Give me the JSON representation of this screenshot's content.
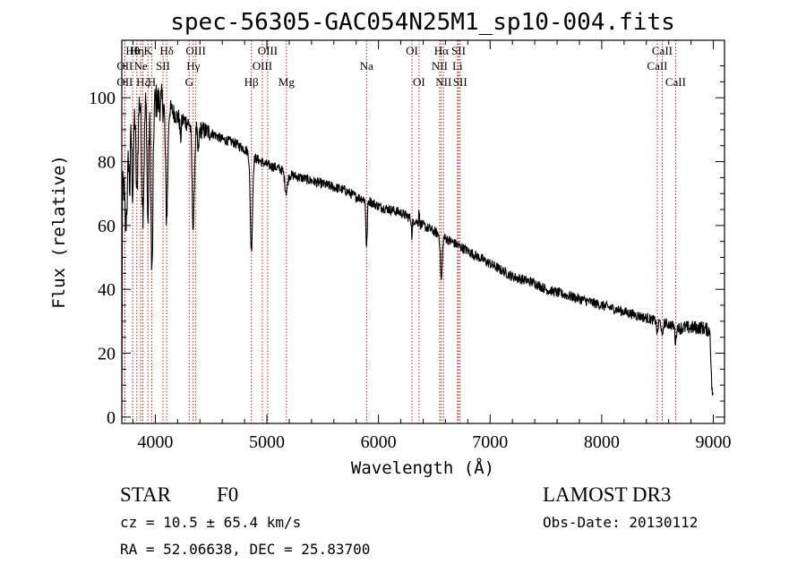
{
  "chart_data": {
    "type": "line",
    "title": "spec-56305-GAC054N25M1_sp10-004.fits",
    "xlabel": "Wavelength (Å)",
    "ylabel": "Flux (relative)",
    "xlim": [
      3700,
      9100
    ],
    "ylim": [
      -2,
      118
    ],
    "xticks": [
      4000,
      5000,
      6000,
      7000,
      8000,
      9000
    ],
    "yticks": [
      0,
      20,
      40,
      60,
      80,
      100
    ],
    "spectrum_anchors": [
      [
        3700,
        0
      ],
      [
        3705,
        70
      ],
      [
        3730,
        78
      ],
      [
        3760,
        92
      ],
      [
        3800,
        99
      ],
      [
        3850,
        100
      ],
      [
        3900,
        100
      ],
      [
        4000,
        99
      ],
      [
        4100,
        98
      ],
      [
        4200,
        94
      ],
      [
        4300,
        92
      ],
      [
        4400,
        90
      ],
      [
        4500,
        89
      ],
      [
        4600,
        87
      ],
      [
        4700,
        86
      ],
      [
        4800,
        84
      ],
      [
        4900,
        81
      ],
      [
        5000,
        79
      ],
      [
        5100,
        78
      ],
      [
        5200,
        76
      ],
      [
        5300,
        75
      ],
      [
        5400,
        74
      ],
      [
        5500,
        73
      ],
      [
        5600,
        72
      ],
      [
        5700,
        71
      ],
      [
        5800,
        69
      ],
      [
        5900,
        68
      ],
      [
        6000,
        66
      ],
      [
        6100,
        65
      ],
      [
        6200,
        64
      ],
      [
        6300,
        62
      ],
      [
        6400,
        60
      ],
      [
        6500,
        58
      ],
      [
        6600,
        56
      ],
      [
        6700,
        54
      ],
      [
        6800,
        52
      ],
      [
        6900,
        50
      ],
      [
        7000,
        48
      ],
      [
        7100,
        46
      ],
      [
        7200,
        44
      ],
      [
        7300,
        43
      ],
      [
        7400,
        42
      ],
      [
        7500,
        40
      ],
      [
        7600,
        39
      ],
      [
        7700,
        38
      ],
      [
        7800,
        37
      ],
      [
        7900,
        36
      ],
      [
        8000,
        35
      ],
      [
        8100,
        34
      ],
      [
        8200,
        33
      ],
      [
        8300,
        32
      ],
      [
        8400,
        31
      ],
      [
        8500,
        30
      ],
      [
        8600,
        29
      ],
      [
        8700,
        28
      ],
      [
        8800,
        28
      ],
      [
        8900,
        28
      ],
      [
        8970,
        27
      ],
      [
        8985,
        10
      ],
      [
        9000,
        5
      ]
    ],
    "absorption_features": [
      [
        3734,
        18,
        8
      ],
      [
        3750,
        14,
        8
      ],
      [
        3771,
        22,
        6
      ],
      [
        3798,
        28,
        8
      ],
      [
        3835,
        30,
        9
      ],
      [
        3889,
        35,
        10
      ],
      [
        3934,
        40,
        7
      ],
      [
        3970,
        55,
        9
      ],
      [
        4102,
        35,
        10
      ],
      [
        4227,
        6,
        6
      ],
      [
        4340,
        32,
        10
      ],
      [
        4384,
        8,
        6
      ],
      [
        4861,
        30,
        10
      ],
      [
        5173,
        6,
        12
      ],
      [
        5893,
        15,
        6
      ],
      [
        6300,
        28,
        4
      ],
      [
        6563,
        14,
        8
      ],
      [
        8498,
        4,
        6
      ],
      [
        8542,
        5,
        6
      ],
      [
        8662,
        5,
        6
      ]
    ],
    "emission_features": [
      [
        6300,
        22,
        4
      ],
      [
        6363,
        5,
        3
      ]
    ],
    "lines": [
      {
        "label": "Hθ",
        "x": 3798,
        "row": 0
      },
      {
        "label": "OII",
        "x": 3727,
        "row": 1
      },
      {
        "label": "OII",
        "x": 3727,
        "row": 2
      },
      {
        "label": "Hη",
        "x": 3835,
        "row": 0
      },
      {
        "label": "Ne",
        "x": 3869,
        "row": 1
      },
      {
        "label": "Hζ",
        "x": 3889,
        "row": 2
      },
      {
        "label": "K",
        "x": 3934,
        "row": 0
      },
      {
        "label": "SII",
        "x": 4069,
        "row": 1
      },
      {
        "label": "H",
        "x": 3968,
        "row": 2
      },
      {
        "label": "Hδ",
        "x": 4102,
        "row": 0
      },
      {
        "label": "OIII",
        "x": 4363,
        "row": 0
      },
      {
        "label": "Hγ",
        "x": 4340,
        "row": 1
      },
      {
        "label": "G",
        "x": 4304,
        "row": 2
      },
      {
        "label": "Hβ",
        "x": 4861,
        "row": 2
      },
      {
        "label": "OIII",
        "x": 5007,
        "row": 0
      },
      {
        "label": "OIII",
        "x": 4959,
        "row": 1
      },
      {
        "label": "Mg",
        "x": 5175,
        "row": 2
      },
      {
        "label": "Na",
        "x": 5893,
        "row": 1
      },
      {
        "label": "OI",
        "x": 6300,
        "row": 0
      },
      {
        "label": "OI",
        "x": 6363,
        "row": 2
      },
      {
        "label": "Hα",
        "x": 6563,
        "row": 0
      },
      {
        "label": "NII",
        "x": 6548,
        "row": 1
      },
      {
        "label": "NII",
        "x": 6583,
        "row": 2
      },
      {
        "label": "SII",
        "x": 6717,
        "row": 0
      },
      {
        "label": "Li",
        "x": 6708,
        "row": 1
      },
      {
        "label": "SII",
        "x": 6731,
        "row": 2
      },
      {
        "label": "CaII",
        "x": 8542,
        "row": 0
      },
      {
        "label": "CaII",
        "x": 8498,
        "row": 1
      },
      {
        "label": "CaII",
        "x": 8662,
        "row": 2
      }
    ]
  },
  "info": {
    "class": "STAR",
    "subclass": "F0",
    "survey": "LAMOST DR3",
    "cz": "cz = 10.5 ± 65.4 km/s",
    "obs_date": "Obs-Date: 20130112",
    "radec": "RA =  52.06638, DEC =  25.83700"
  },
  "colors": {
    "line_marker": "#b22222",
    "spectrum": "#000000"
  }
}
